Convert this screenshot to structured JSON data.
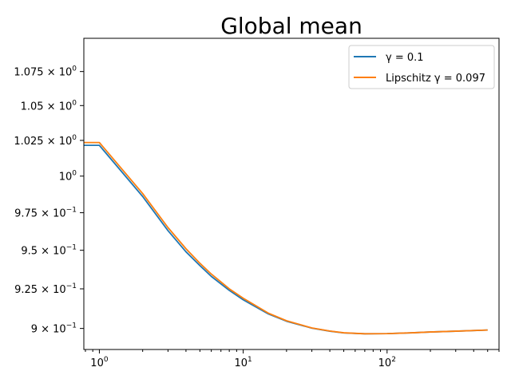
{
  "chart_data": {
    "type": "line",
    "title": "Global mean",
    "xlabel": "",
    "ylabel": "",
    "xscale": "log",
    "yscale": "log",
    "xlim": [
      0.78,
      600
    ],
    "ylim": [
      0.887,
      1.1
    ],
    "grid": false,
    "legend_position": "top-right",
    "x_ticks": [
      {
        "value": 1,
        "base": "10",
        "exp": "0"
      },
      {
        "value": 10,
        "base": "10",
        "exp": "1"
      },
      {
        "value": 100,
        "base": "10",
        "exp": "2"
      }
    ],
    "y_ticks": [
      {
        "value": 0.9,
        "mant": "9",
        "exp": "−1"
      },
      {
        "value": 0.925,
        "mant": "9.25",
        "exp": "−1"
      },
      {
        "value": 0.95,
        "mant": "9.5",
        "exp": "−1"
      },
      {
        "value": 0.975,
        "mant": "9.75",
        "exp": "−1"
      },
      {
        "value": 1.0,
        "mant": "1",
        "exp": "0"
      },
      {
        "value": 1.025,
        "mant": "1.025",
        "exp": "0"
      },
      {
        "value": 1.05,
        "mant": "1.05",
        "exp": "0"
      },
      {
        "value": 1.075,
        "mant": "1.075",
        "exp": "0"
      }
    ],
    "series": [
      {
        "name": "γ = 0.1",
        "color": "#1f77b4",
        "x": [
          0.78,
          1,
          2,
          3,
          4,
          5,
          6,
          8,
          10,
          15,
          20,
          30,
          40,
          50,
          70,
          100,
          150,
          200,
          300,
          500
        ],
        "y": [
          1.0215,
          1.0215,
          0.986,
          0.963,
          0.949,
          0.94,
          0.933,
          0.924,
          0.918,
          0.909,
          0.9045,
          0.9002,
          0.8983,
          0.8972,
          0.8967,
          0.8968,
          0.8973,
          0.8978,
          0.8983,
          0.899
        ]
      },
      {
        "name": "Lipschitz γ = 0.097",
        "color": "#ff7f0e",
        "x": [
          0.78,
          1,
          2,
          3,
          4,
          5,
          6,
          8,
          10,
          15,
          20,
          30,
          40,
          50,
          70,
          100,
          150,
          200,
          300,
          500
        ],
        "y": [
          1.0235,
          1.0235,
          0.988,
          0.965,
          0.951,
          0.9415,
          0.9345,
          0.925,
          0.919,
          0.9095,
          0.9048,
          0.9003,
          0.8984,
          0.8973,
          0.8967,
          0.8968,
          0.8973,
          0.8978,
          0.8983,
          0.899
        ]
      }
    ]
  }
}
